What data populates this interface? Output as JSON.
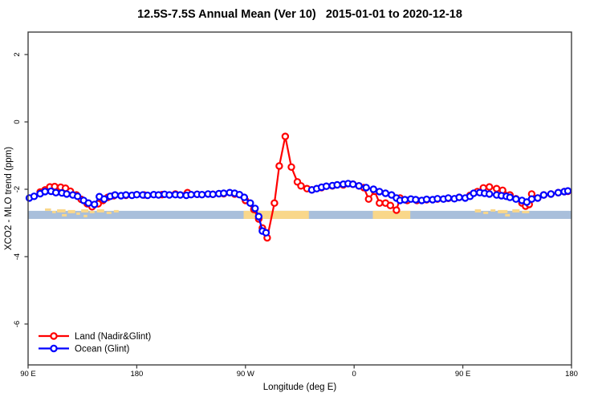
{
  "chart_data": {
    "type": "line",
    "title": "12.5S-7.5S Annual Mean (Ver 10)   2015-01-01 to 2020-12-18",
    "xlabel": "Longitude (deg E)",
    "ylabel": "XCO2 - MLO trend (ppm)",
    "x_axis": {
      "range": [
        90,
        540
      ],
      "ticks": [
        90,
        180,
        270,
        360,
        450,
        540
      ],
      "tick_labels": [
        "90 E",
        "180",
        "90 W",
        "0",
        "90 E",
        "180"
      ],
      "note": "longitude axis wraps eastward from 90E through 180, 90W, 0, 90E to 180"
    },
    "y_axis": {
      "range": [
        -7.2,
        2.67
      ],
      "ticks": [
        2,
        0,
        -2,
        -4,
        -6
      ],
      "tick_labels": [
        "2",
        "0",
        "-2",
        "-4",
        "-6"
      ]
    },
    "grid": false,
    "legend_position": "bottom-left",
    "colors": {
      "land": "#ff0000",
      "ocean": "#0000ff",
      "axis": "#3f3f3f",
      "map_ocean": "#a9bfdb",
      "map_land": "#f9d78a"
    },
    "map_band": {
      "description": "latitude-strip map underlay: ocean blue with land in orange",
      "v_top": -2.64,
      "v_bottom": -2.88,
      "solid_land_segments": [
        {
          "name": "south-america",
          "from": 268.5,
          "to": 322.5
        },
        {
          "name": "africa",
          "from": 375.5,
          "to": 406.5
        }
      ],
      "island_specks": [
        {
          "from": 104,
          "to": 109,
          "dy": 1,
          "h": 3
        },
        {
          "from": 110,
          "to": 113,
          "dy": 4,
          "h": 3
        },
        {
          "from": 114,
          "to": 121,
          "dy": 2,
          "h": 4
        },
        {
          "from": 118,
          "to": 122,
          "dy": 8,
          "h": 3
        },
        {
          "from": 123,
          "to": 129,
          "dy": 3,
          "h": 4
        },
        {
          "from": 130,
          "to": 133,
          "dy": 6,
          "h": 3
        },
        {
          "from": 134,
          "to": 140,
          "dy": 2,
          "h": 4
        },
        {
          "from": 136,
          "to": 139,
          "dy": 9,
          "h": 3
        },
        {
          "from": 141,
          "to": 145,
          "dy": 4,
          "h": 3
        },
        {
          "from": 147,
          "to": 153,
          "dy": 2,
          "h": 4
        },
        {
          "from": 155,
          "to": 159,
          "dy": 5,
          "h": 3
        },
        {
          "from": 161,
          "to": 165,
          "dy": 3,
          "h": 3
        },
        {
          "from": 460,
          "to": 465,
          "dy": 2,
          "h": 4
        },
        {
          "from": 467,
          "to": 471,
          "dy": 5,
          "h": 3
        },
        {
          "from": 473,
          "to": 477,
          "dy": 2,
          "h": 3
        },
        {
          "from": 479,
          "to": 487,
          "dy": 3,
          "h": 4
        },
        {
          "from": 485,
          "to": 489,
          "dy": 8,
          "h": 3
        },
        {
          "from": 491,
          "to": 497,
          "dy": 2,
          "h": 4
        },
        {
          "from": 499,
          "to": 505,
          "dy": 4,
          "h": 3
        }
      ]
    },
    "series": [
      {
        "name": "Land (Nadir&Glint)",
        "color": "#ff0000",
        "segments": [
          [
            [
              100,
              -2.08
            ],
            [
              104,
              -2.02
            ],
            [
              108,
              -1.93
            ],
            [
              112,
              -1.92
            ],
            [
              117,
              -1.94
            ],
            [
              121,
              -1.97
            ],
            [
              125,
              -2.06
            ],
            [
              130,
              -2.17
            ],
            [
              134,
              -2.3
            ],
            [
              139,
              -2.43
            ],
            [
              143,
              -2.52
            ],
            [
              148,
              -2.43
            ],
            [
              152,
              -2.33
            ],
            [
              156,
              -2.24
            ],
            [
              161,
              -2.19
            ],
            [
              171,
              -2.18
            ],
            [
              186,
              -2.17
            ],
            [
              201,
              -2.16
            ],
            [
              212,
              -2.14
            ],
            [
              222,
              -2.1
            ],
            [
              230,
              -2.15
            ],
            [
              243,
              -2.15
            ],
            [
              252,
              -2.13
            ],
            [
              261,
              -2.14
            ],
            [
              270,
              -2.33
            ],
            [
              277,
              -2.6
            ],
            [
              281,
              -2.88
            ],
            [
              284,
              -3.15
            ],
            [
              288,
              -3.44
            ],
            [
              294,
              -2.41
            ],
            [
              298,
              -1.31
            ],
            [
              303,
              -0.43
            ],
            [
              308,
              -1.34
            ],
            [
              313,
              -1.78
            ],
            [
              316,
              -1.9
            ],
            [
              321,
              -1.98
            ],
            [
              325,
              -2.02
            ],
            [
              333,
              -1.95
            ],
            [
              342,
              -1.9
            ],
            [
              351,
              -1.87
            ],
            [
              359,
              -1.85
            ],
            [
              364,
              -1.9
            ],
            [
              368,
              -1.95
            ],
            [
              372,
              -2.29
            ],
            [
              377,
              -2.06
            ],
            [
              381,
              -2.41
            ],
            [
              386,
              -2.41
            ],
            [
              390,
              -2.48
            ],
            [
              395,
              -2.62
            ],
            [
              398,
              -2.26
            ],
            [
              404,
              -2.33
            ],
            [
              412,
              -2.33
            ],
            [
              420,
              -2.31
            ],
            [
              429,
              -2.29
            ],
            [
              438,
              -2.27
            ],
            [
              447,
              -2.24
            ],
            [
              456,
              -2.18
            ],
            [
              462,
              -2.07
            ],
            [
              467,
              -1.96
            ],
            [
              472,
              -1.93
            ],
            [
              478,
              -1.98
            ],
            [
              483,
              -2.03
            ],
            [
              489,
              -2.17
            ],
            [
              494,
              -2.28
            ],
            [
              499,
              -2.41
            ],
            [
              502,
              -2.5
            ],
            [
              505,
              -2.45
            ],
            [
              507,
              -2.14
            ],
            [
              512,
              -2.26
            ],
            [
              517,
              -2.17
            ],
            [
              523,
              -2.14
            ],
            [
              529,
              -2.1
            ],
            [
              534,
              -2.07
            ],
            [
              537,
              -2.06
            ]
          ]
        ]
      },
      {
        "name": "Ocean (Glint)",
        "color": "#0000ff",
        "segments": [
          [
            [
              91,
              -2.26
            ],
            [
              95,
              -2.21
            ],
            [
              100,
              -2.13
            ],
            [
              104,
              -2.07
            ],
            [
              109,
              -2.06
            ],
            [
              113,
              -2.1
            ],
            [
              118,
              -2.11
            ],
            [
              122,
              -2.14
            ],
            [
              127,
              -2.17
            ],
            [
              131,
              -2.21
            ],
            [
              136,
              -2.33
            ],
            [
              140,
              -2.41
            ],
            [
              145,
              -2.45
            ],
            [
              149,
              -2.22
            ],
            [
              153,
              -2.29
            ],
            [
              158,
              -2.21
            ],
            [
              162,
              -2.17
            ],
            [
              167,
              -2.19
            ],
            [
              171,
              -2.17
            ],
            [
              176,
              -2.18
            ],
            [
              180,
              -2.16
            ],
            [
              185,
              -2.17
            ],
            [
              189,
              -2.18
            ],
            [
              194,
              -2.16
            ],
            [
              198,
              -2.17
            ],
            [
              203,
              -2.15
            ],
            [
              207,
              -2.17
            ],
            [
              212,
              -2.16
            ],
            [
              216,
              -2.17
            ],
            [
              221,
              -2.18
            ],
            [
              225,
              -2.16
            ],
            [
              230,
              -2.15
            ],
            [
              234,
              -2.16
            ],
            [
              239,
              -2.14
            ],
            [
              243,
              -2.15
            ],
            [
              248,
              -2.13
            ],
            [
              252,
              -2.12
            ],
            [
              257,
              -2.1
            ],
            [
              261,
              -2.12
            ],
            [
              265,
              -2.16
            ],
            [
              269,
              -2.24
            ],
            [
              274,
              -2.41
            ],
            [
              278,
              -2.57
            ],
            [
              281,
              -2.81
            ],
            [
              284,
              -3.24
            ],
            [
              287,
              -3.29
            ]
          ],
          [
            [
              325,
              -2.02
            ],
            [
              329,
              -1.98
            ],
            [
              333,
              -1.94
            ],
            [
              337,
              -1.91
            ],
            [
              342,
              -1.89
            ],
            [
              346,
              -1.87
            ],
            [
              351,
              -1.85
            ],
            [
              355,
              -1.83
            ],
            [
              359,
              -1.85
            ],
            [
              364,
              -1.9
            ],
            [
              370,
              -1.95
            ],
            [
              376,
              -2.0
            ],
            [
              381,
              -2.07
            ],
            [
              386,
              -2.12
            ],
            [
              391,
              -2.17
            ],
            [
              395,
              -2.26
            ],
            [
              398,
              -2.33
            ],
            [
              402,
              -2.31
            ],
            [
              407,
              -2.29
            ],
            [
              411,
              -2.31
            ],
            [
              416,
              -2.33
            ],
            [
              420,
              -2.3
            ],
            [
              425,
              -2.31
            ],
            [
              429,
              -2.28
            ],
            [
              434,
              -2.29
            ],
            [
              438,
              -2.26
            ],
            [
              443,
              -2.28
            ],
            [
              447,
              -2.24
            ],
            [
              452,
              -2.26
            ],
            [
              456,
              -2.21
            ],
            [
              459,
              -2.12
            ],
            [
              464,
              -2.1
            ],
            [
              468,
              -2.12
            ],
            [
              472,
              -2.14
            ],
            [
              478,
              -2.17
            ],
            [
              482,
              -2.19
            ],
            [
              486,
              -2.21
            ],
            [
              489,
              -2.24
            ],
            [
              494,
              -2.29
            ],
            [
              499,
              -2.33
            ],
            [
              503,
              -2.38
            ],
            [
              507,
              -2.29
            ],
            [
              512,
              -2.26
            ],
            [
              517,
              -2.17
            ],
            [
              523,
              -2.14
            ],
            [
              529,
              -2.1
            ],
            [
              534,
              -2.07
            ],
            [
              537,
              -2.05
            ]
          ]
        ]
      }
    ]
  }
}
